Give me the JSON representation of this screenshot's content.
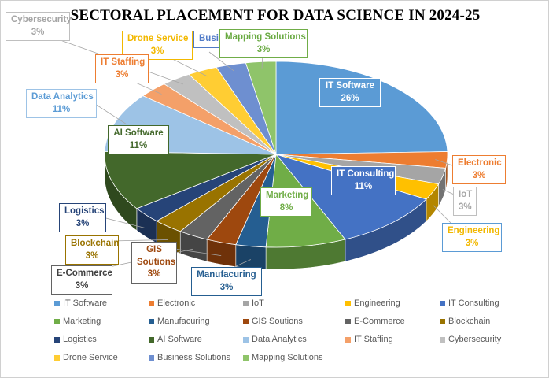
{
  "chart_data": {
    "type": "pie",
    "title": "SECTORAL PLACEMENT FOR DATA SCIENCE IN 2024-25",
    "slices": [
      {
        "label": "IT Software",
        "value": 26,
        "value_label": "26%",
        "color": "#5b9bd5"
      },
      {
        "label": "Electronic",
        "value": 3,
        "value_label": "3%",
        "color": "#ed7d31"
      },
      {
        "label": "IoT",
        "value": 3,
        "value_label": "3%",
        "color": "#a5a5a5"
      },
      {
        "label": "Engineering",
        "value": 3,
        "value_label": "3%",
        "color": "#ffc000"
      },
      {
        "label": "IT Consulting",
        "value": 11,
        "value_label": "11%",
        "color": "#4472c4"
      },
      {
        "label": "Marketing",
        "value": 8,
        "value_label": "8%",
        "color": "#70ad47"
      },
      {
        "label": "Manufacuring",
        "value": 3,
        "value_label": "3%",
        "color": "#255e91"
      },
      {
        "label": "GIS Soutions",
        "value": 3,
        "value_label": "3%",
        "color": "#9e480e"
      },
      {
        "label": "E-Commerce",
        "value": 3,
        "value_label": "3%",
        "color": "#636363"
      },
      {
        "label": "Blockchain",
        "value": 3,
        "value_label": "3%",
        "color": "#997300"
      },
      {
        "label": "Logistics",
        "value": 3,
        "value_label": "3%",
        "color": "#264478"
      },
      {
        "label": "AI Software",
        "value": 11,
        "value_label": "11%",
        "color": "#43682b"
      },
      {
        "label": "Data Analytics",
        "value": 11,
        "value_label": "11%",
        "color": "#9dc3e6"
      },
      {
        "label": "IT Staffing",
        "value": 3,
        "value_label": "3%",
        "color": "#f4a069"
      },
      {
        "label": "Cybersecurity",
        "value": 3,
        "value_label": "3%",
        "color": "#c0c0c0"
      },
      {
        "label": "Drone Service",
        "value": 3,
        "value_label": "3%",
        "color": "#ffcd33"
      },
      {
        "label": "Business Solutions",
        "value": 3,
        "value_label": "3%",
        "color": "#6e8fd0"
      },
      {
        "label": "Mapping Solutions",
        "value": 3,
        "value_label": "3%",
        "color": "#8fc46a"
      }
    ],
    "legend_position": "bottom"
  },
  "callouts": {
    "it_software": {
      "text": "IT Software",
      "value": "26%"
    },
    "electronic": {
      "text": "Electronic",
      "value": "3%"
    },
    "iot": {
      "text": "IoT",
      "value": "3%"
    },
    "engineering": {
      "text": "Engineering",
      "value": "3%"
    },
    "it_consulting": {
      "text": "IT Consulting",
      "value": "11%"
    },
    "marketing": {
      "text": "Marketing",
      "value": "8%"
    },
    "manufacuring": {
      "text": "Manufacuring",
      "value": "3%"
    },
    "gis": {
      "text": "GIS Soutions",
      "value": "3%"
    },
    "ecommerce": {
      "text": "E-Commerce",
      "value": "3%"
    },
    "blockchain": {
      "text": "Blockchain",
      "value": "3%"
    },
    "logistics": {
      "text": "Logistics",
      "value": "3%"
    },
    "ai_software": {
      "text": "AI Software",
      "value": "11%"
    },
    "data_analytics": {
      "text": "Data Analytics",
      "value": "11%"
    },
    "it_staffing": {
      "text": "IT Staffing",
      "value": "3%"
    },
    "cybersecurity": {
      "text": "Cybersecurity",
      "value": "3%"
    },
    "drone": {
      "text": "Drone Service",
      "value": "3%"
    },
    "business": {
      "text": "Busin",
      "value": ""
    },
    "mapping": {
      "text": "Mapping Solutions",
      "value": "3%"
    }
  }
}
